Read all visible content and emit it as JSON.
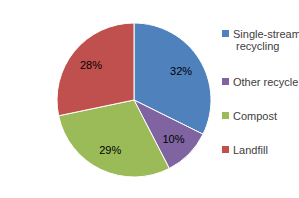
{
  "chart_data": {
    "type": "pie",
    "categories": [
      "Single-stream recycling",
      "Other recycle",
      "Compost",
      "Landfill"
    ],
    "values": [
      32,
      10,
      29,
      28
    ],
    "value_labels": [
      "32%",
      "10%",
      "29%",
      "28%"
    ],
    "colors": [
      "#4f81bd",
      "#8064a2",
      "#9bbb59",
      "#c0504d"
    ],
    "data_labels": true,
    "legend": "right"
  }
}
